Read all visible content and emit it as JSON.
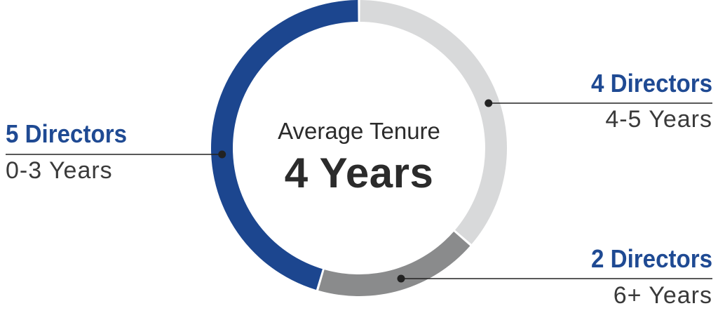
{
  "chart_data": {
    "type": "pie",
    "center": {
      "caption": "Average Tenure",
      "value": "4 Years"
    },
    "slices": [
      {
        "count_label": "5 Directors",
        "range_label": "0-3 Years",
        "value": 5,
        "color": "#1c468f"
      },
      {
        "count_label": "4 Directors",
        "range_label": "4-5 Years",
        "value": 4,
        "color": "#d8d9da"
      },
      {
        "count_label": "2 Directors",
        "range_label": "6+ Years",
        "value": 2,
        "color": "#8a8b8c"
      }
    ]
  }
}
